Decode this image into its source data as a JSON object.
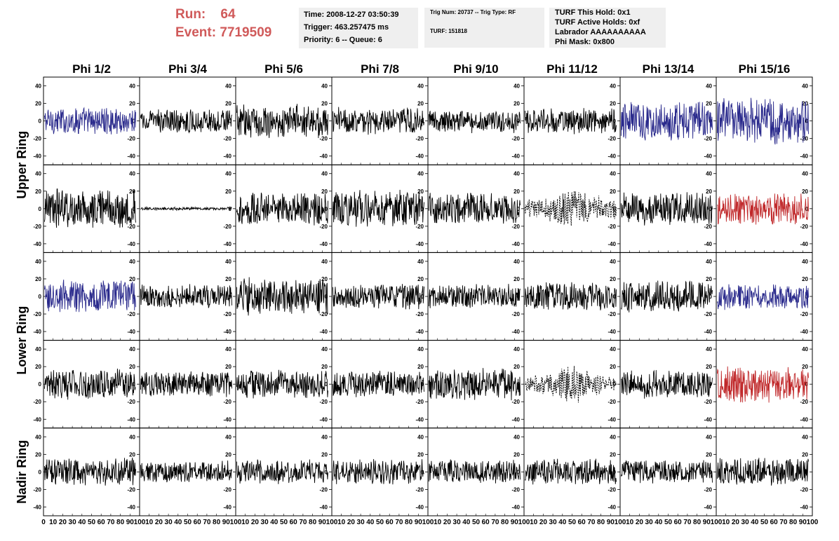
{
  "header": {
    "run_label": "Run:",
    "run_value": "64",
    "event_label": "Event:",
    "event_value": "7719509"
  },
  "info_time": {
    "time": "Time: 2008-12-27 03:50:39",
    "trigger": "Trigger: 463.257475 ms",
    "priority": "Priority: 6 -- Queue: 6"
  },
  "info_trig": {
    "trig": "Trig Num: 20737 -- Trig Type: RF",
    "turf": "TURF: 151818"
  },
  "info_turf": {
    "hold": "TURF This Hold: 0x1",
    "active": "TURF Active Holds: 0xf",
    "labrador": "Labrador AAAAAAAAAA",
    "phimask": "Phi Mask: 0x800"
  },
  "chart_data": {
    "type": "line",
    "columns": [
      "Phi 1/2",
      "Phi 3/4",
      "Phi 5/6",
      "Phi 7/8",
      "Phi 9/10",
      "Phi 11/12",
      "Phi 13/14",
      "Phi 15/16"
    ],
    "row_groups": [
      {
        "label": "Upper Ring",
        "rows": [
          0,
          1
        ]
      },
      {
        "label": "Lower Ring",
        "rows": [
          2,
          3
        ]
      },
      {
        "label": "Nadir Ring",
        "rows": [
          4
        ]
      }
    ],
    "xlim": [
      0,
      100
    ],
    "ylim": [
      -50,
      50
    ],
    "yticks": [
      -40,
      -20,
      0,
      20,
      40
    ],
    "xticks": [
      0,
      10,
      20,
      30,
      40,
      50,
      60,
      70,
      80,
      90,
      100
    ],
    "x_tick_labels": [
      "0",
      "10",
      "20",
      "30",
      "40",
      "50",
      "60",
      "70",
      "80",
      "90",
      "100"
    ],
    "x_tick_labels_compact": [
      "10",
      "20",
      "30",
      "40",
      "50",
      "60",
      "70",
      "80",
      "90",
      "100"
    ],
    "colors": {
      "black": "#000000",
      "blue": "#2a2a8c",
      "red": "#c0282a"
    },
    "traces": [
      {
        "row": 0,
        "col": 0,
        "amp": 14,
        "color": "blue",
        "style": "solid"
      },
      {
        "row": 0,
        "col": 1,
        "amp": 12,
        "color": "black",
        "style": "solid"
      },
      {
        "row": 0,
        "col": 2,
        "amp": 17,
        "color": "black",
        "style": "solid"
      },
      {
        "row": 0,
        "col": 3,
        "amp": 14,
        "color": "black",
        "style": "solid"
      },
      {
        "row": 0,
        "col": 4,
        "amp": 12,
        "color": "black",
        "style": "solid"
      },
      {
        "row": 0,
        "col": 5,
        "amp": 13,
        "color": "black",
        "style": "solid"
      },
      {
        "row": 0,
        "col": 6,
        "amp": 20,
        "color": "blue",
        "style": "solid"
      },
      {
        "row": 0,
        "col": 7,
        "amp": 23,
        "color": "blue",
        "style": "solid"
      },
      {
        "row": 1,
        "col": 0,
        "amp": 20,
        "color": "black",
        "style": "solid"
      },
      {
        "row": 1,
        "col": 1,
        "amp": 1.5,
        "color": "black",
        "style": "solid"
      },
      {
        "row": 1,
        "col": 2,
        "amp": 17,
        "color": "black",
        "style": "solid"
      },
      {
        "row": 1,
        "col": 3,
        "amp": 19,
        "color": "black",
        "style": "solid"
      },
      {
        "row": 1,
        "col": 4,
        "amp": 16,
        "color": "black",
        "style": "solid"
      },
      {
        "row": 1,
        "col": 5,
        "amp": 22,
        "color": "black",
        "style": "dashed"
      },
      {
        "row": 1,
        "col": 6,
        "amp": 17,
        "color": "black",
        "style": "solid"
      },
      {
        "row": 1,
        "col": 7,
        "amp": 17,
        "color": "red",
        "style": "solid"
      },
      {
        "row": 2,
        "col": 0,
        "amp": 17,
        "color": "blue",
        "style": "solid"
      },
      {
        "row": 2,
        "col": 1,
        "amp": 12,
        "color": "black",
        "style": "solid"
      },
      {
        "row": 2,
        "col": 2,
        "amp": 19,
        "color": "black",
        "style": "solid"
      },
      {
        "row": 2,
        "col": 3,
        "amp": 13,
        "color": "black",
        "style": "solid"
      },
      {
        "row": 2,
        "col": 4,
        "amp": 12,
        "color": "black",
        "style": "solid"
      },
      {
        "row": 2,
        "col": 5,
        "amp": 14,
        "color": "black",
        "style": "solid"
      },
      {
        "row": 2,
        "col": 6,
        "amp": 16,
        "color": "black",
        "style": "solid"
      },
      {
        "row": 2,
        "col": 7,
        "amp": 13,
        "color": "blue",
        "style": "solid"
      },
      {
        "row": 3,
        "col": 0,
        "amp": 16,
        "color": "black",
        "style": "solid"
      },
      {
        "row": 3,
        "col": 1,
        "amp": 13,
        "color": "black",
        "style": "solid"
      },
      {
        "row": 3,
        "col": 2,
        "amp": 14,
        "color": "black",
        "style": "solid"
      },
      {
        "row": 3,
        "col": 3,
        "amp": 13,
        "color": "black",
        "style": "solid"
      },
      {
        "row": 3,
        "col": 4,
        "amp": 16,
        "color": "black",
        "style": "solid"
      },
      {
        "row": 3,
        "col": 5,
        "amp": 19,
        "color": "black",
        "style": "dashed"
      },
      {
        "row": 3,
        "col": 6,
        "amp": 14,
        "color": "black",
        "style": "solid"
      },
      {
        "row": 3,
        "col": 7,
        "amp": 19,
        "color": "red",
        "style": "solid"
      },
      {
        "row": 4,
        "col": 0,
        "amp": 14,
        "color": "black",
        "style": "solid"
      },
      {
        "row": 4,
        "col": 1,
        "amp": 11,
        "color": "black",
        "style": "solid"
      },
      {
        "row": 4,
        "col": 2,
        "amp": 12,
        "color": "black",
        "style": "solid"
      },
      {
        "row": 4,
        "col": 3,
        "amp": 13,
        "color": "black",
        "style": "solid"
      },
      {
        "row": 4,
        "col": 4,
        "amp": 12,
        "color": "black",
        "style": "solid"
      },
      {
        "row": 4,
        "col": 5,
        "amp": 13,
        "color": "black",
        "style": "solid"
      },
      {
        "row": 4,
        "col": 6,
        "amp": 12,
        "color": "black",
        "style": "solid"
      },
      {
        "row": 4,
        "col": 7,
        "amp": 14,
        "color": "black",
        "style": "solid"
      }
    ]
  }
}
